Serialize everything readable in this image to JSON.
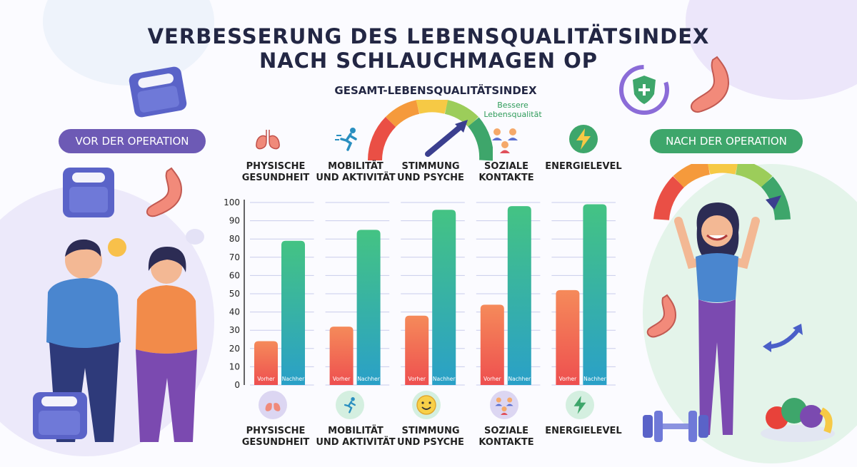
{
  "header": {
    "title_line1": "VERBESSERUNG DES LEBENSQUALITÄTSINDEX",
    "title_line2": "NACH SCHLAUCHMAGEN OP",
    "subtitle": "GESAMT-LEBENSQUALITÄTSINDEX",
    "gauge_label": "Bessere Lebensqualität"
  },
  "left_panel": {
    "label": "VOR DER OPERATION",
    "color": "#6d5ab5"
  },
  "right_panel": {
    "label": "NACH DER OPERATION",
    "color": "#3ea66b"
  },
  "categories": [
    {
      "line1": "PHYSISCHE",
      "line2": "GESUNDHEIT",
      "icon": "lungs-icon"
    },
    {
      "line1": "MOBILITÄT",
      "line2": "UND AKTIVITÄT",
      "icon": "runner-icon"
    },
    {
      "line1": "STIMMUNG",
      "line2": "UND PSYCHE",
      "icon": "smiley-icon"
    },
    {
      "line1": "SOZIALE",
      "line2": "KONTAKTE",
      "icon": "people-icon"
    },
    {
      "line1": "ENERGIELEVEL",
      "line2": "",
      "icon": "lightning-icon"
    }
  ],
  "chart_data": {
    "type": "bar",
    "categories": [
      "PHYSISCHE GESUNDHEIT",
      "MOBILITÄT UND AKTIVITÄT",
      "STIMMUNG UND PSYCHE",
      "SOZIALE KONTAKTE",
      "ENERGIELEVEL"
    ],
    "series": [
      {
        "name": "Vorher",
        "values": [
          24,
          32,
          38,
          44,
          52
        ],
        "color_top": "#f58a5a",
        "color_bottom": "#ee4f4f"
      },
      {
        "name": "Nachher",
        "values": [
          79,
          85,
          96,
          98,
          99
        ],
        "color_top": "#44c383",
        "color_bottom": "#2aa0c8"
      }
    ],
    "yticks": [
      0,
      10,
      20,
      30,
      40,
      50,
      60,
      70,
      80,
      90,
      100
    ],
    "ylim": [
      0,
      100
    ],
    "grid": true
  },
  "colors": {
    "title": "#232744",
    "accent_purple": "#6d5ab5",
    "accent_green": "#3ea66b"
  }
}
